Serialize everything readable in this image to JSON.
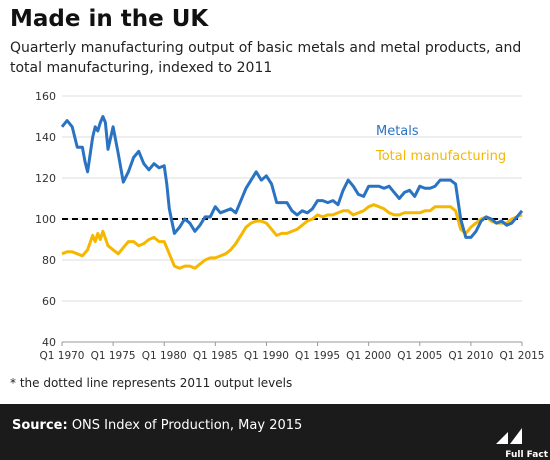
{
  "header": {
    "title": "Made in the UK",
    "subtitle": "Quarterly manufacturing output of basic metals and metal products, and total manufacturing, indexed to 2011"
  },
  "footnote": "* the dotted line represents 2011 output levels",
  "footer": {
    "source_label": "Source:",
    "source_text": "ONS Index of Production, May 2015",
    "logo_text": "Full Fact"
  },
  "colors": {
    "metals": "#2a73c2",
    "total": "#f5b700",
    "reference": "#000000",
    "footer_bg": "#1b1b1b"
  },
  "chart_data": {
    "type": "line",
    "title": "",
    "xlabel": "",
    "ylabel": "",
    "ylim": [
      40,
      160
    ],
    "y_ticks": [
      "40",
      "60",
      "80",
      "100",
      "120",
      "140",
      "160"
    ],
    "x_ticks": [
      "Q1 1970",
      "Q1 1975",
      "Q1 1980",
      "Q1 1985",
      "Q1 1990",
      "Q1 1995",
      "Q1 2000",
      "Q1 2005",
      "Q1 2010",
      "Q1 2015"
    ],
    "xlim": [
      1970,
      2015
    ],
    "grid": "horizontal",
    "reference_line": {
      "value": 100,
      "style": "dashed"
    },
    "legend_placement": "top-right",
    "series": [
      {
        "name": "Metals",
        "color": "#2a73c2",
        "x": [
          1970,
          1970.5,
          1971,
          1971.5,
          1972,
          1972.25,
          1972.5,
          1973,
          1973.25,
          1973.5,
          1973.75,
          1974,
          1974.25,
          1974.5,
          1975,
          1975.5,
          1976,
          1976.5,
          1977,
          1977.5,
          1978,
          1978.5,
          1979,
          1979.5,
          1980,
          1980.25,
          1980.5,
          1981,
          1981.5,
          1982,
          1982.5,
          1983,
          1983.5,
          1984,
          1984.5,
          1985,
          1985.5,
          1986,
          1986.5,
          1987,
          1987.5,
          1988,
          1988.5,
          1989,
          1989.5,
          1990,
          1990.5,
          1991,
          1991.5,
          1992,
          1992.5,
          1993,
          1993.5,
          1994,
          1994.5,
          1995,
          1995.5,
          1996,
          1996.5,
          1997,
          1997.5,
          1998,
          1998.5,
          1999,
          1999.5,
          2000,
          2000.5,
          2001,
          2001.5,
          2002,
          2002.5,
          2003,
          2003.5,
          2004,
          2004.5,
          2005,
          2005.5,
          2006,
          2006.5,
          2007,
          2007.5,
          2008,
          2008.5,
          2009,
          2009.5,
          2010,
          2010.5,
          2011,
          2011.5,
          2012,
          2012.5,
          2013,
          2013.5,
          2014,
          2014.5,
          2015
        ],
        "values": [
          145,
          148,
          145,
          135,
          135,
          128,
          123,
          140,
          145,
          143,
          147,
          150,
          147,
          134,
          145,
          132,
          118,
          123,
          130,
          133,
          127,
          124,
          127,
          125,
          126,
          117,
          105,
          93,
          96,
          100,
          98,
          94,
          97,
          101,
          101,
          106,
          103,
          104,
          105,
          103,
          109,
          115,
          119,
          123,
          119,
          121,
          117,
          108,
          108,
          108,
          104,
          102,
          104,
          103,
          105,
          109,
          109,
          108,
          109,
          107,
          114,
          119,
          116,
          112,
          111,
          116,
          116,
          116,
          115,
          116,
          113,
          110,
          113,
          114,
          111,
          116,
          115,
          115,
          116,
          119,
          119,
          119,
          117,
          100,
          91,
          91,
          94,
          99,
          101,
          100,
          98,
          99,
          97,
          98,
          101,
          104
        ]
      },
      {
        "name": "Total manufacturing",
        "color": "#f5b700",
        "x": [
          1970,
          1970.5,
          1971,
          1971.5,
          1972,
          1972.5,
          1973,
          1973.25,
          1973.5,
          1973.75,
          1974,
          1974.5,
          1975,
          1975.5,
          1976,
          1976.5,
          1977,
          1977.5,
          1978,
          1978.5,
          1979,
          1979.5,
          1980,
          1980.5,
          1981,
          1981.5,
          1982,
          1982.5,
          1983,
          1983.5,
          1984,
          1984.5,
          1985,
          1985.5,
          1986,
          1986.5,
          1987,
          1987.5,
          1988,
          1988.5,
          1989,
          1989.5,
          1990,
          1990.5,
          1991,
          1991.5,
          1992,
          1992.5,
          1993,
          1993.5,
          1994,
          1994.5,
          1995,
          1995.5,
          1996,
          1996.5,
          1997,
          1997.5,
          1998,
          1998.5,
          1999,
          1999.5,
          2000,
          2000.5,
          2001,
          2001.5,
          2002,
          2002.5,
          2003,
          2003.5,
          2004,
          2004.5,
          2005,
          2005.5,
          2006,
          2006.5,
          2007,
          2007.5,
          2008,
          2008.5,
          2009,
          2009.5,
          2010,
          2010.5,
          2011,
          2011.5,
          2012,
          2012.5,
          2013,
          2013.5,
          2014,
          2014.5,
          2015
        ],
        "values": [
          83,
          84,
          84,
          83,
          82,
          85,
          92,
          89,
          93,
          90,
          94,
          87,
          85,
          83,
          86,
          89,
          89,
          87,
          88,
          90,
          91,
          89,
          89,
          83,
          77,
          76,
          77,
          77,
          76,
          78,
          80,
          81,
          81,
          82,
          83,
          85,
          88,
          92,
          96,
          98,
          99,
          99,
          98,
          95,
          92,
          93,
          93,
          94,
          95,
          97,
          99,
          100,
          102,
          101,
          102,
          102,
          103,
          104,
          104,
          102,
          103,
          104,
          106,
          107,
          106,
          105,
          103,
          102,
          102,
          103,
          103,
          103,
          103,
          104,
          104,
          106,
          106,
          106,
          106,
          104,
          95,
          93,
          96,
          98,
          100,
          101,
          99,
          98,
          98,
          98,
          100,
          101,
          102
        ]
      }
    ]
  }
}
